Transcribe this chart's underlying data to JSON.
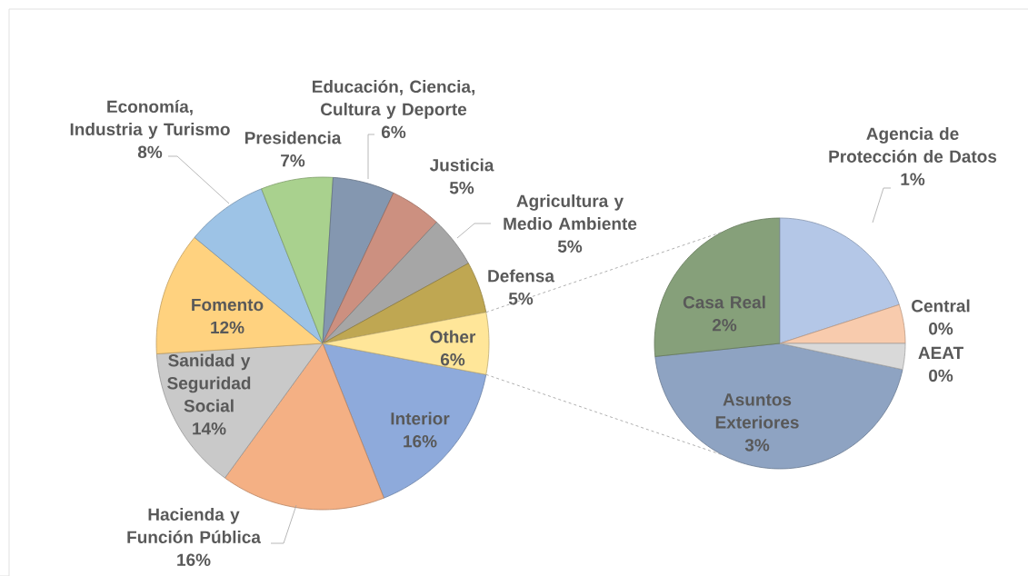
{
  "chart_data": [
    {
      "type": "pie",
      "categories": [
        "Interior",
        "Hacienda y Función Pública",
        "Sanidad y Seguridad Social",
        "Fomento",
        "Economía, Industria y Turismo",
        "Presidencia",
        "Educación, Ciencia, Cultura y Deporte",
        "Justicia",
        "Agricultura y Medio Ambiente",
        "Defensa",
        "Other"
      ],
      "values": [
        16,
        16,
        14,
        12,
        8,
        7,
        6,
        5,
        5,
        5,
        6
      ],
      "value_labels": [
        "16%",
        "16%",
        "14%",
        "12%",
        "8%",
        "7%",
        "6%",
        "5%",
        "5%",
        "5%",
        "6%"
      ],
      "colors": [
        "#8eaadb",
        "#f4b084",
        "#c9c9c9",
        "#ffd27f",
        "#9dc3e6",
        "#a9d18e",
        "#8497b0",
        "#cc9080",
        "#a6a6a6",
        "#bfa752",
        "#ffe699"
      ]
    },
    {
      "type": "pie",
      "categories": [
        "Asuntos Exteriores",
        "Casa Real",
        "Agencia de Protección de Datos",
        "Central",
        "AEAT"
      ],
      "values": [
        2.7,
        1.6,
        1.2,
        0.3,
        0.2
      ],
      "value_labels": [
        "3%",
        "2%",
        "1%",
        "0%",
        "0%"
      ],
      "colors": [
        "#8ea3c2",
        "#86a07a",
        "#b4c7e7",
        "#f8cbad",
        "#d9d9d9"
      ]
    }
  ]
}
